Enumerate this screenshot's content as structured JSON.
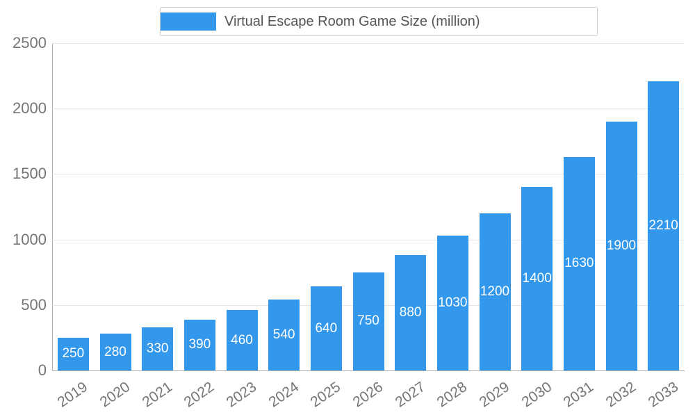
{
  "legend": {
    "label": "Virtual Escape Room Game Size (million)"
  },
  "chart_data": {
    "type": "bar",
    "title": "Virtual Escape Room Game Size (million)",
    "categories": [
      "2019",
      "2020",
      "2021",
      "2022",
      "2023",
      "2024",
      "2025",
      "2026",
      "2027",
      "2028",
      "2029",
      "2030",
      "2031",
      "2032",
      "2033"
    ],
    "values": [
      250,
      280,
      330,
      390,
      460,
      540,
      640,
      750,
      880,
      1030,
      1200,
      1400,
      1630,
      1900,
      2210
    ],
    "xlabel": "",
    "ylabel": "",
    "ylim": [
      0,
      2500
    ],
    "ytick_step": 500,
    "yticks": [
      0,
      500,
      1000,
      1500,
      2000,
      2500
    ],
    "grid": true,
    "legend_position": "top",
    "bar_color": "#3398ec",
    "value_label_color": "#ffffff",
    "axis_text_color": "#757575",
    "gridline_color": "#e6e6e6"
  }
}
